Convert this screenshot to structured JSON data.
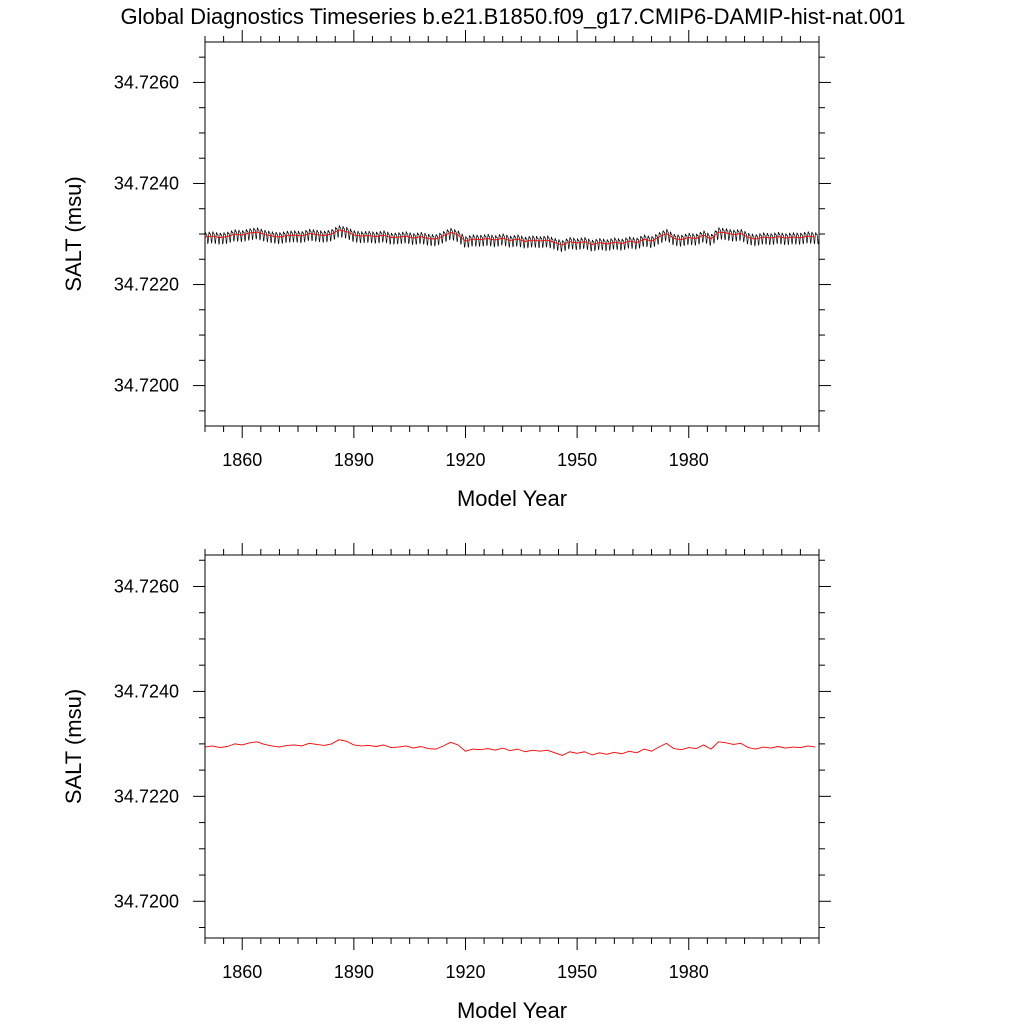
{
  "title": "Global Diagnostics Timeseries b.e21.B1850.f09_g17.CMIP6-DAMIP-hist-nat.001",
  "colors": {
    "monthly": "#000000",
    "annual": "#ff0000",
    "axis": "#000000"
  },
  "chart_data": [
    {
      "type": "line",
      "title": "",
      "xlabel": "Model Year",
      "ylabel": "SALT (msu)",
      "xlim": [
        1850,
        2015
      ],
      "ylim": [
        34.7192,
        34.7268
      ],
      "xticks": [
        1860,
        1890,
        1920,
        1950,
        1980
      ],
      "xtick_labels": [
        "1860",
        "1890",
        "1920",
        "1950",
        "1980"
      ],
      "yticks": [
        34.72,
        34.722,
        34.724,
        34.726
      ],
      "ytick_labels": [
        "34.7200",
        "34.7220",
        "34.7240",
        "34.7260"
      ],
      "series": [
        {
          "style": "monthly",
          "x_start": 1850,
          "x_step": 0.0833333,
          "seasonal_amplitude": 0.00013,
          "baseline": "annual"
        },
        {
          "style": "annual",
          "x": [
            1850,
            1852,
            1854,
            1856,
            1858,
            1860,
            1862,
            1864,
            1866,
            1868,
            1870,
            1872,
            1874,
            1876,
            1878,
            1880,
            1882,
            1884,
            1886,
            1888,
            1890,
            1892,
            1894,
            1896,
            1898,
            1900,
            1902,
            1904,
            1906,
            1908,
            1910,
            1912,
            1914,
            1916,
            1918,
            1920,
            1922,
            1924,
            1926,
            1928,
            1930,
            1932,
            1934,
            1936,
            1938,
            1940,
            1942,
            1944,
            1946,
            1948,
            1950,
            1952,
            1954,
            1956,
            1958,
            1960,
            1962,
            1964,
            1966,
            1968,
            1970,
            1972,
            1974,
            1976,
            1978,
            1980,
            1982,
            1984,
            1986,
            1988,
            1990,
            1992,
            1994,
            1996,
            1998,
            2000,
            2002,
            2004,
            2006,
            2008,
            2010,
            2012,
            2014
          ],
          "values": [
            34.72294,
            34.72296,
            34.72293,
            34.72295,
            34.723,
            34.72298,
            34.72302,
            34.72304,
            34.72299,
            34.72296,
            34.72294,
            34.72297,
            34.72298,
            34.72296,
            34.72301,
            34.72299,
            34.72297,
            34.723,
            34.72308,
            34.72305,
            34.72298,
            34.72296,
            34.72297,
            34.72295,
            34.72298,
            34.72293,
            34.72294,
            34.72296,
            34.72292,
            34.72295,
            34.72291,
            34.7229,
            34.72296,
            34.72303,
            34.72298,
            34.72286,
            34.7229,
            34.72289,
            34.72291,
            34.72288,
            34.72292,
            34.72287,
            34.7229,
            34.72285,
            34.72288,
            34.72286,
            34.72288,
            34.72283,
            34.72278,
            34.72285,
            34.72282,
            34.72285,
            34.72279,
            34.72283,
            34.7228,
            34.72284,
            34.72281,
            34.72286,
            34.72283,
            34.7229,
            34.72286,
            34.72294,
            34.72301,
            34.72291,
            34.72289,
            34.72293,
            34.72291,
            34.72298,
            34.7229,
            34.72304,
            34.72302,
            34.72299,
            34.72301,
            34.72293,
            34.7229,
            34.72294,
            34.72292,
            34.72295,
            34.72292,
            34.72294,
            34.72293,
            34.72296,
            34.72294
          ]
        }
      ]
    },
    {
      "type": "line",
      "title": "",
      "xlabel": "Model Year",
      "ylabel": "SALT (msu)",
      "xlim": [
        1850,
        2015
      ],
      "ylim": [
        34.7193,
        34.7266
      ],
      "xticks": [
        1860,
        1890,
        1920,
        1950,
        1980
      ],
      "xtick_labels": [
        "1860",
        "1890",
        "1920",
        "1950",
        "1980"
      ],
      "yticks": [
        34.72,
        34.722,
        34.724,
        34.726
      ],
      "ytick_labels": [
        "34.7200",
        "34.7220",
        "34.7240",
        "34.7260"
      ],
      "series": [
        {
          "style": "annual",
          "x": [
            1850,
            1852,
            1854,
            1856,
            1858,
            1860,
            1862,
            1864,
            1866,
            1868,
            1870,
            1872,
            1874,
            1876,
            1878,
            1880,
            1882,
            1884,
            1886,
            1888,
            1890,
            1892,
            1894,
            1896,
            1898,
            1900,
            1902,
            1904,
            1906,
            1908,
            1910,
            1912,
            1914,
            1916,
            1918,
            1920,
            1922,
            1924,
            1926,
            1928,
            1930,
            1932,
            1934,
            1936,
            1938,
            1940,
            1942,
            1944,
            1946,
            1948,
            1950,
            1952,
            1954,
            1956,
            1958,
            1960,
            1962,
            1964,
            1966,
            1968,
            1970,
            1972,
            1974,
            1976,
            1978,
            1980,
            1982,
            1984,
            1986,
            1988,
            1990,
            1992,
            1994,
            1996,
            1998,
            2000,
            2002,
            2004,
            2006,
            2008,
            2010,
            2012,
            2014
          ],
          "values": [
            34.72294,
            34.72296,
            34.72293,
            34.72295,
            34.723,
            34.72298,
            34.72302,
            34.72304,
            34.72299,
            34.72296,
            34.72294,
            34.72297,
            34.72298,
            34.72296,
            34.72301,
            34.72299,
            34.72297,
            34.723,
            34.72308,
            34.72305,
            34.72298,
            34.72296,
            34.72297,
            34.72295,
            34.72298,
            34.72293,
            34.72294,
            34.72296,
            34.72292,
            34.72295,
            34.72291,
            34.7229,
            34.72296,
            34.72303,
            34.72298,
            34.72286,
            34.7229,
            34.72289,
            34.72291,
            34.72288,
            34.72292,
            34.72287,
            34.7229,
            34.72285,
            34.72288,
            34.72286,
            34.72288,
            34.72283,
            34.72278,
            34.72285,
            34.72282,
            34.72285,
            34.72279,
            34.72283,
            34.7228,
            34.72284,
            34.72281,
            34.72286,
            34.72283,
            34.7229,
            34.72286,
            34.72294,
            34.72301,
            34.72291,
            34.72289,
            34.72293,
            34.72291,
            34.72298,
            34.7229,
            34.72304,
            34.72302,
            34.72299,
            34.72301,
            34.72293,
            34.7229,
            34.72294,
            34.72292,
            34.72295,
            34.72292,
            34.72294,
            34.72293,
            34.72296,
            34.72294
          ]
        }
      ]
    }
  ]
}
